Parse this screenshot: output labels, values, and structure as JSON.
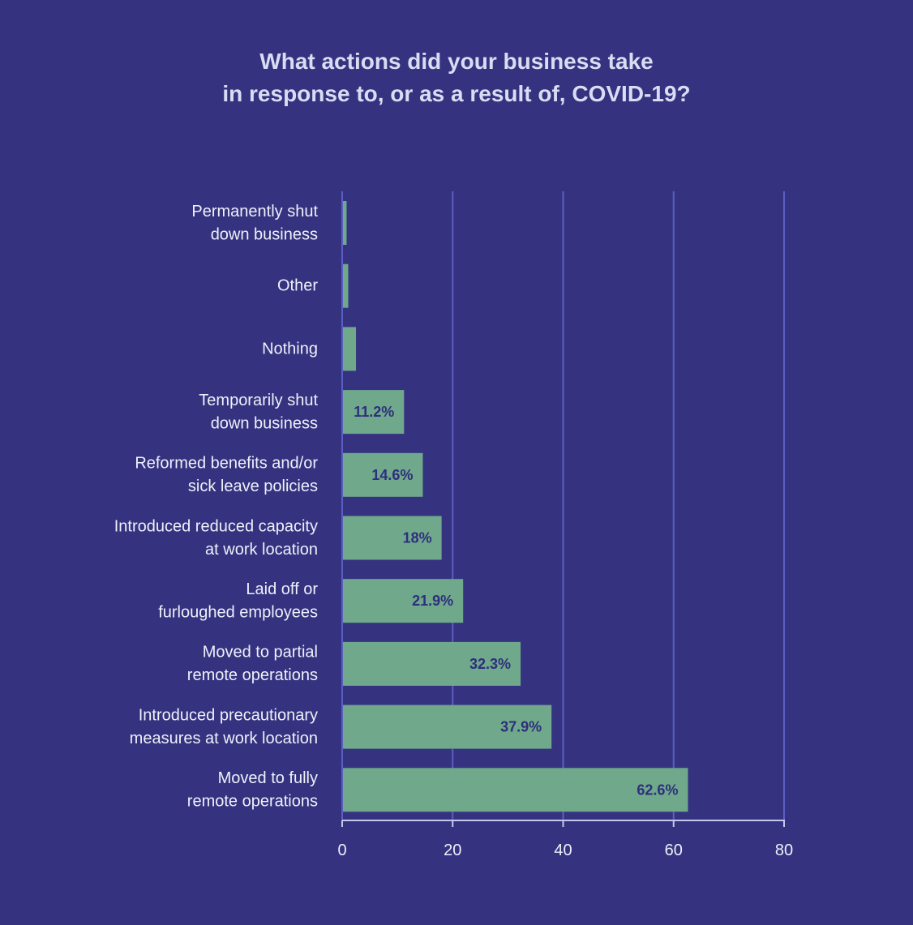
{
  "chart_data": {
    "type": "bar",
    "orientation": "horizontal",
    "title": [
      "What actions did your business take",
      "in response to, or as a result of, COVID-19?"
    ],
    "categories": [
      [
        "Permanently shut",
        "down business"
      ],
      [
        "Other"
      ],
      [
        "Nothing"
      ],
      [
        "Temporarily shut",
        "down business"
      ],
      [
        "Reformed benefits and/or",
        "sick leave policies"
      ],
      [
        "Introduced reduced capacity",
        "at work location"
      ],
      [
        "Laid off or",
        "furloughed employees"
      ],
      [
        "Moved to partial",
        "remote operations"
      ],
      [
        "Introduced precautionary",
        "measures at work location"
      ],
      [
        "Moved to fully",
        "remote operations"
      ]
    ],
    "values": [
      0.8,
      1.1,
      2.5,
      11.2,
      14.6,
      18,
      21.9,
      32.3,
      37.9,
      62.6
    ],
    "value_labels": [
      "",
      "",
      "",
      "11.2%",
      "14.6%",
      "18%",
      "21.9%",
      "32.3%",
      "37.9%",
      "62.6%"
    ],
    "xlim": [
      0,
      80
    ],
    "xticks": [
      0,
      20,
      40,
      60,
      80
    ],
    "grid": "vertical",
    "legend": "none",
    "colors": {
      "background": "#35337f",
      "bar": "#6fa88b",
      "grid": "#5b5fc2",
      "axis": "#c4c8ee",
      "text": "#eef0fb",
      "title": "#d9ddf4",
      "data_label": "#2e2f7c"
    }
  }
}
